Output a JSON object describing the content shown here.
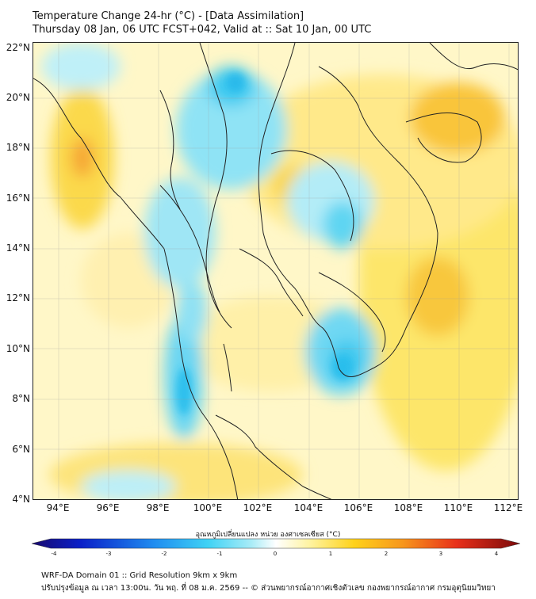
{
  "title": {
    "line1": "Temperature Change 24-hr (°C) - [Data Assimilation]",
    "line2": "Thursday 08 Jan, 06 UTC FCST+042, Valid at :: Sat 10 Jan, 00 UTC"
  },
  "axes": {
    "lat_labels": [
      "22°N",
      "20°N",
      "18°N",
      "16°N",
      "14°N",
      "12°N",
      "10°N",
      "8°N",
      "6°N",
      "4°N"
    ],
    "lon_labels": [
      "94°E",
      "96°E",
      "98°E",
      "100°E",
      "102°E",
      "104°E",
      "106°E",
      "108°E",
      "110°E",
      "112°E"
    ],
    "lat_range": [
      4,
      22.25
    ],
    "lon_range": [
      93,
      112.4
    ],
    "grid": true
  },
  "colorbar": {
    "title": "อุณหภูมิเปลี่ยนแปลง หน่วย องศาเซลเซียส (°C)",
    "ticks": [
      "-4",
      "-3",
      "-2",
      "-1",
      "0",
      "1",
      "2",
      "3",
      "4"
    ],
    "range": [
      -4,
      4
    ],
    "colors": [
      "#1a0a6e",
      "#0a1fc8",
      "#1f8cf0",
      "#3fd2f5",
      "#a9ecf7",
      "#ffffff",
      "#fff3a0",
      "#ffd21a",
      "#f7961c",
      "#e8301a",
      "#7a0a0a"
    ]
  },
  "footer": {
    "line1": "WRF-DA Domain 01 :: Grid Resolution 9km x 9km",
    "line2": "ปรับปรุงข้อมูล ณ เวลา 13:00น. วัน พฤ. ที่ 08 ม.ค. 2569 -- © ส่วนพยากรณ์อากาศเชิงตัวเลข กองพยากรณ์อากาศ กรมอุตุนิยมวิทยา"
  }
}
